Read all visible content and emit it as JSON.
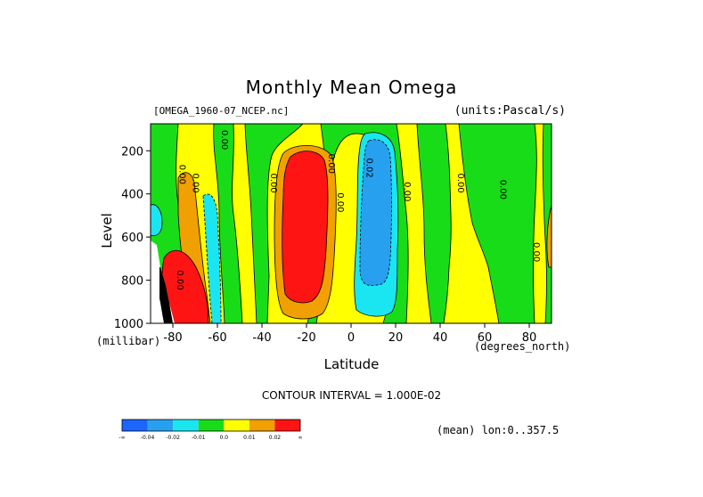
{
  "chart_data": {
    "type": "heatmap",
    "title": "Monthly Mean Omega",
    "subtitle_left": "[OMEGA_1960-07_NCEP.nc]",
    "subtitle_right": "(units:Pascal/s)",
    "xlabel": "Latitude",
    "x_units": "(degrees_north)",
    "ylabel": "Level",
    "y_units": "(millibar)",
    "xlim": [
      -90,
      90
    ],
    "ylim": [
      1000,
      75
    ],
    "x_ticks": [
      -80,
      -60,
      -40,
      -20,
      0,
      20,
      40,
      60,
      80
    ],
    "x_tick_labels": [
      "-80",
      "-60",
      "-40",
      "-20",
      "0",
      "20",
      "40",
      "60",
      "80"
    ],
    "y_ticks": [
      200,
      400,
      600,
      800,
      1000
    ],
    "y_tick_labels": [
      "200",
      "400",
      "600",
      "800",
      "1000"
    ],
    "contour_interval": "CONTOUR INTERVAL = 1.000E-02",
    "contour_labels": [
      {
        "x": -58,
        "y": 150,
        "text": "0.00"
      },
      {
        "x": -77,
        "y": 310,
        "text": "0.00"
      },
      {
        "x": -71,
        "y": 350,
        "text": "0.00"
      },
      {
        "x": -36,
        "y": 350,
        "text": "0.00"
      },
      {
        "x": -10,
        "y": 260,
        "text": "0.00"
      },
      {
        "x": -6,
        "y": 440,
        "text": "0.00"
      },
      {
        "x": 7,
        "y": 280,
        "text": "0.02"
      },
      {
        "x": 24,
        "y": 390,
        "text": "0.00"
      },
      {
        "x": 48,
        "y": 350,
        "text": "0.00"
      },
      {
        "x": 67,
        "y": 380,
        "text": "0.00"
      },
      {
        "x": 82,
        "y": 670,
        "text": "0.00"
      },
      {
        "x": -78,
        "y": 800,
        "text": "0.00"
      }
    ],
    "colorbar": {
      "colors": [
        "#1a66ff",
        "#28a0f0",
        "#19e6f0",
        "#19dc19",
        "#ffff00",
        "#f0a000",
        "#ff1414"
      ],
      "labels": [
        "-∞",
        "-0.04",
        "-0.02",
        "-0.01",
        "0.0",
        "0.01",
        "0.02",
        "∞"
      ]
    },
    "grid": false
  },
  "annotation": "(mean) lon:0..357.5"
}
